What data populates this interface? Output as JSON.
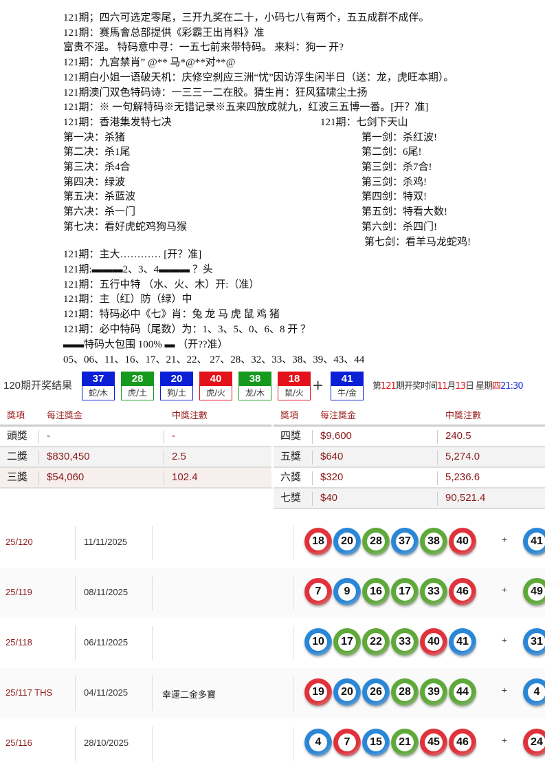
{
  "text_lines": [
    "121期；四六可选定零尾，三开九奖在二十，小码七八有两个，五五成群不成伴。",
    "121期：赛馬會总部提供《彩霸王出肖料》准",
    "富贵不淫。 特码意中寻：一五七前来带特码。 来料：狗一   开?",
    "121期：九宫禁肖” @** 马*@**对**@",
    "121期白小姐一语破天机：庆修空刹应三洲“忧”因访浮生闲半日（送：龙，虎旺本期）。",
    "121期澳门双色特码诗：一三三一二在胶。猜生肖：狂风猛啸尘土扬",
    "121期：※ 一句解特码※无错记录※五来四放成就九，红波三五博一番。[开？准]"
  ],
  "left_col": {
    "title": "121期：香港集发特七决",
    "items": [
      "第一决：杀猪",
      "第二决：杀1尾",
      "第三决：杀4合",
      "第四决：绿波",
      "第五决：杀蓝波",
      "第六决：杀一门",
      "第七决：看好虎蛇鸡狗马猴"
    ]
  },
  "right_col": {
    "title": "121期：七剑下天山",
    "items": [
      "第一剑：杀红波!",
      "第二剑：6尾!",
      "第三剑：杀7合!",
      "第三剑：杀鸡!",
      "第四剑：特双!",
      "第五剑：特看大数!",
      "第六剑：杀四门!",
      "第七剑：看羊马龙蛇鸡!"
    ]
  },
  "text_lines2": [
    "121期：主大………… [开？准]",
    "121期:▬▬▬2、3、4▬▬▬ ？头",
    "121期：五行中特  （水、火、木）开:（准）",
    "121期：主（红）防（绿）中",
    "121期：特码必中《七》肖：兔 龙 马 虎 鼠 鸡  猪",
    "121期：必中特码（尾数）为：1、3、5、0、6、8      开 ？",
    "▬▬特码大包围 100% ▬   （开??准）",
    "05、06、11、16、17、21、22、 27、28、32、33、38、39、43、44"
  ],
  "result": {
    "title": "120期开奖结果",
    "balls": [
      {
        "num": "37",
        "zodiac": "蛇/木",
        "color": "#0a1fd6"
      },
      {
        "num": "28",
        "zodiac": "虎/土",
        "color": "#159a1e"
      },
      {
        "num": "20",
        "zodiac": "狗/土",
        "color": "#0a1fd6"
      },
      {
        "num": "40",
        "zodiac": "虎/火",
        "color": "#e3121b"
      },
      {
        "num": "38",
        "zodiac": "龙/木",
        "color": "#159a1e"
      },
      {
        "num": "18",
        "zodiac": "鼠/火",
        "color": "#e3121b"
      }
    ],
    "plus": "+",
    "special": {
      "num": "41",
      "zodiac": "牛/金",
      "color": "#0a1fd6"
    },
    "next": {
      "p1": "第",
      "issue": "121",
      "p2": "期开奖时间",
      "month": "11",
      "p3": "月",
      "day": "13",
      "p4": "日 星期",
      "weekday": "四",
      "time": "21:30"
    }
  },
  "prize_table": {
    "headers": [
      "獎項",
      "每注獎金",
      "中獎注數"
    ],
    "left": [
      [
        "頭獎",
        "-",
        "-"
      ],
      [
        "二獎",
        "$830,450",
        "2.5"
      ],
      [
        "三獎",
        "$54,060",
        "102.4"
      ]
    ],
    "right": [
      [
        "四獎",
        "$9,600",
        "240.5"
      ],
      [
        "五獎",
        "$640",
        "5,274.0"
      ],
      [
        "六獎",
        "$320",
        "5,236.6"
      ],
      [
        "七獎",
        "$40",
        "90,521.4"
      ]
    ]
  },
  "ball_colors": {
    "red": "#e0323a",
    "blue": "#2a86d6",
    "green": "#5fa83a"
  },
  "draws": [
    {
      "id": "25/120",
      "date": "11/11/2025",
      "note": "",
      "balls": [
        [
          "18",
          "red"
        ],
        [
          "20",
          "blue"
        ],
        [
          "28",
          "green"
        ],
        [
          "37",
          "blue"
        ],
        [
          "38",
          "green"
        ],
        [
          "40",
          "red"
        ]
      ],
      "special": [
        "41",
        "blue"
      ]
    },
    {
      "id": "25/119",
      "date": "08/11/2025",
      "note": "",
      "balls": [
        [
          "7",
          "red"
        ],
        [
          "9",
          "blue"
        ],
        [
          "16",
          "green"
        ],
        [
          "17",
          "green"
        ],
        [
          "33",
          "green"
        ],
        [
          "46",
          "red"
        ]
      ],
      "special": [
        "49",
        "green"
      ]
    },
    {
      "id": "25/118",
      "date": "06/11/2025",
      "note": "",
      "balls": [
        [
          "10",
          "blue"
        ],
        [
          "17",
          "green"
        ],
        [
          "22",
          "green"
        ],
        [
          "33",
          "green"
        ],
        [
          "40",
          "red"
        ],
        [
          "41",
          "blue"
        ]
      ],
      "special": [
        "31",
        "blue"
      ]
    },
    {
      "id": "25/117 THS",
      "date": "04/11/2025",
      "note": "幸運二金多寶",
      "balls": [
        [
          "19",
          "red"
        ],
        [
          "20",
          "blue"
        ],
        [
          "26",
          "blue"
        ],
        [
          "28",
          "green"
        ],
        [
          "39",
          "green"
        ],
        [
          "44",
          "green"
        ]
      ],
      "special": [
        "4",
        "blue"
      ]
    },
    {
      "id": "25/116",
      "date": "28/10/2025",
      "note": "",
      "balls": [
        [
          "4",
          "blue"
        ],
        [
          "7",
          "red"
        ],
        [
          "15",
          "blue"
        ],
        [
          "21",
          "green"
        ],
        [
          "45",
          "red"
        ],
        [
          "46",
          "red"
        ]
      ],
      "special": [
        "24",
        "red"
      ]
    }
  ]
}
